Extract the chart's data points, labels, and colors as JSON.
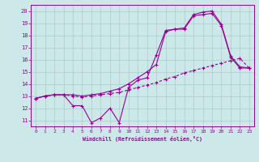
{
  "xlabel": "Windchill (Refroidissement éolien,°C)",
  "bg_color": "#cce8e8",
  "line_color": "#990099",
  "grid_color": "#aacccc",
  "xlim": [
    -0.5,
    23.5
  ],
  "ylim": [
    10.5,
    20.5
  ],
  "xticks": [
    0,
    1,
    2,
    3,
    4,
    5,
    6,
    7,
    8,
    9,
    10,
    11,
    12,
    13,
    14,
    15,
    16,
    17,
    18,
    19,
    20,
    21,
    22,
    23
  ],
  "yticks": [
    11,
    12,
    13,
    14,
    15,
    16,
    17,
    18,
    19,
    20
  ],
  "line1_x": [
    0,
    1,
    2,
    3,
    4,
    5,
    6,
    7,
    8,
    9,
    10,
    11,
    12,
    13,
    14,
    15,
    16,
    17,
    18,
    19,
    20,
    21,
    22,
    23
  ],
  "line1_y": [
    12.8,
    13.0,
    13.1,
    13.1,
    12.2,
    12.2,
    10.8,
    11.2,
    12.0,
    10.8,
    13.7,
    14.3,
    14.5,
    16.4,
    18.4,
    18.5,
    18.5,
    19.6,
    19.7,
    19.8,
    18.8,
    16.2,
    15.3,
    15.3
  ],
  "line2_x": [
    0,
    1,
    2,
    3,
    4,
    5,
    6,
    7,
    8,
    9,
    10,
    11,
    12,
    13,
    14,
    15,
    16,
    17,
    18,
    19,
    20,
    21,
    22,
    23
  ],
  "line2_y": [
    12.8,
    13.0,
    13.1,
    13.1,
    13.1,
    13.0,
    13.1,
    13.2,
    13.4,
    13.6,
    14.0,
    14.5,
    15.0,
    15.6,
    18.3,
    18.5,
    18.6,
    19.7,
    19.9,
    20.0,
    18.9,
    16.3,
    15.4,
    15.3
  ],
  "line3_x": [
    0,
    1,
    2,
    3,
    4,
    5,
    6,
    7,
    8,
    9,
    10,
    11,
    12,
    13,
    14,
    15,
    16,
    17,
    18,
    19,
    20,
    21,
    22,
    23
  ],
  "line3_y": [
    12.8,
    13.0,
    13.1,
    13.1,
    13.0,
    12.9,
    13.0,
    13.1,
    13.2,
    13.3,
    13.5,
    13.7,
    13.9,
    14.1,
    14.4,
    14.6,
    14.9,
    15.1,
    15.3,
    15.5,
    15.7,
    15.9,
    16.1,
    15.3
  ]
}
